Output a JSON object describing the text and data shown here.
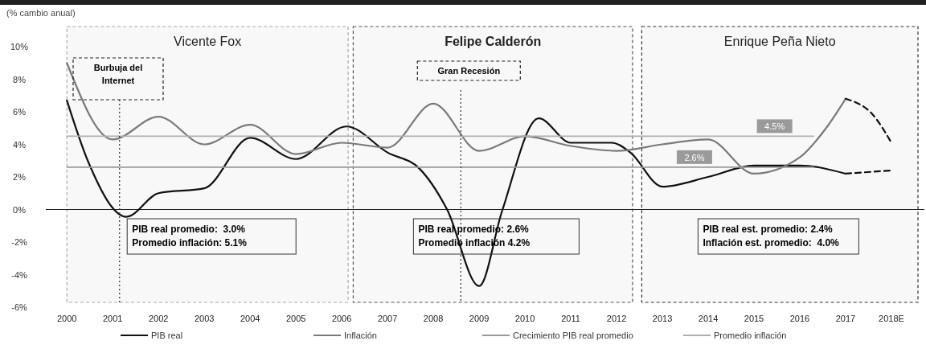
{
  "chart_data": {
    "type": "line",
    "ylabel": "(% cambio anual)",
    "xlim": [
      1999.54,
      2018.72
    ],
    "xticks": [
      2000,
      2001,
      2002,
      2003,
      2004,
      2005,
      2006,
      2007,
      2008,
      2009,
      2010,
      2011,
      2012,
      2013,
      2014,
      2015,
      2016,
      2017,
      {
        "value": 2018,
        "label": "2018E"
      }
    ],
    "ylim": [
      -6,
      10
    ],
    "yticks": [
      {
        "value": -6,
        "label": "-6%"
      },
      {
        "value": -4,
        "label": "-4%"
      },
      {
        "value": -2,
        "label": "-2%"
      },
      {
        "value": 0,
        "label": "0%"
      },
      {
        "value": 2,
        "label": "2%"
      },
      {
        "value": 4,
        "label": "4%"
      },
      {
        "value": 6,
        "label": "6%"
      },
      {
        "value": 8,
        "label": "8%"
      },
      {
        "value": 10,
        "label": "10%"
      }
    ],
    "grid": false,
    "legend": "bottom",
    "series": [
      {
        "name": "PIB real",
        "color": "#111111",
        "x": [
          2000,
          2000.47,
          2001.3,
          2002,
          2003,
          2004,
          2005,
          2006.1,
          2007,
          2007.7,
          2008.3,
          2009,
          2009.5,
          2010.3,
          2011,
          2011.9,
          2012.3,
          2013,
          2014,
          2015,
          2016,
          2017
        ],
        "values": [
          6.7,
          2.9,
          -0.45,
          1.0,
          1.3,
          4.4,
          3.1,
          5.1,
          3.5,
          2.5,
          0,
          -4.7,
          -0.1,
          5.6,
          4.1,
          4.1,
          3.5,
          1.4,
          2.0,
          2.7,
          2.7,
          2.2
        ]
      },
      {
        "name": "Inflación",
        "color": "#7a7a7a",
        "x": [
          2000,
          2001,
          2002,
          2003,
          2004,
          2005,
          2006,
          2007,
          2008,
          2009,
          2010,
          2011,
          2012,
          2013,
          2014,
          2015,
          2016,
          2016.6,
          2017
        ],
        "values": [
          9.0,
          4.3,
          5.7,
          4.0,
          5.2,
          3.4,
          4.1,
          3.8,
          6.5,
          3.6,
          4.5,
          3.9,
          3.6,
          4.0,
          4.3,
          2.2,
          3.2,
          5.1,
          6.8
        ]
      },
      {
        "color": "#111111",
        "line_style": "dashed",
        "x": [
          2017,
          2018
        ],
        "values": [
          2.2,
          2.4
        ]
      },
      {
        "color": "#111111",
        "line_style": "dashed",
        "x": [
          2017,
          2017.6,
          2018
        ],
        "values": [
          6.8,
          5.8,
          4.1
        ]
      },
      {
        "name": "Crecimiento PIB real promedio",
        "color": "#9a9a9a",
        "x": [
          2000,
          2016.3
        ],
        "values": [
          2.6,
          2.6
        ]
      },
      {
        "name": "Promedio inflación",
        "color": "#b0b0b0",
        "x": [
          2000,
          2016.3
        ],
        "values": [
          4.5,
          4.5
        ]
      }
    ],
    "bands": [
      {
        "axis": "x",
        "from": 2000,
        "to": 2006.14,
        "label": "Vicente Fox",
        "color": "#aaaaaa"
      },
      {
        "axis": "x",
        "from": 2006.25,
        "to": 2012.35,
        "label": "Felipe Calderón",
        "color": "#555555"
      },
      {
        "axis": "x",
        "from": 2012.55,
        "to": 2018.58,
        "label": "Enrique Peña Nieto",
        "color": "#333333"
      }
    ],
    "ref_lines": [
      {
        "axis": "x",
        "value": 2001.15,
        "label": "Burbuja del Internet",
        "line_style": "dotted"
      },
      {
        "axis": "x",
        "value": 2008.6,
        "label": "Gran Recesión",
        "line_style": "dotted"
      },
      {
        "axis": "y",
        "value": 0,
        "color": "#222222"
      }
    ],
    "annotations": [
      "PIB real promedio:  3.0%\nPromedio inflación: 5.1%",
      "PIB real promedio: 2.6%\nPromedio inflación 4.2%",
      "PIB real est. promedio: 2.4%\nInflación est. promedio:  4.0%",
      "4.5%",
      "2.6%"
    ]
  }
}
